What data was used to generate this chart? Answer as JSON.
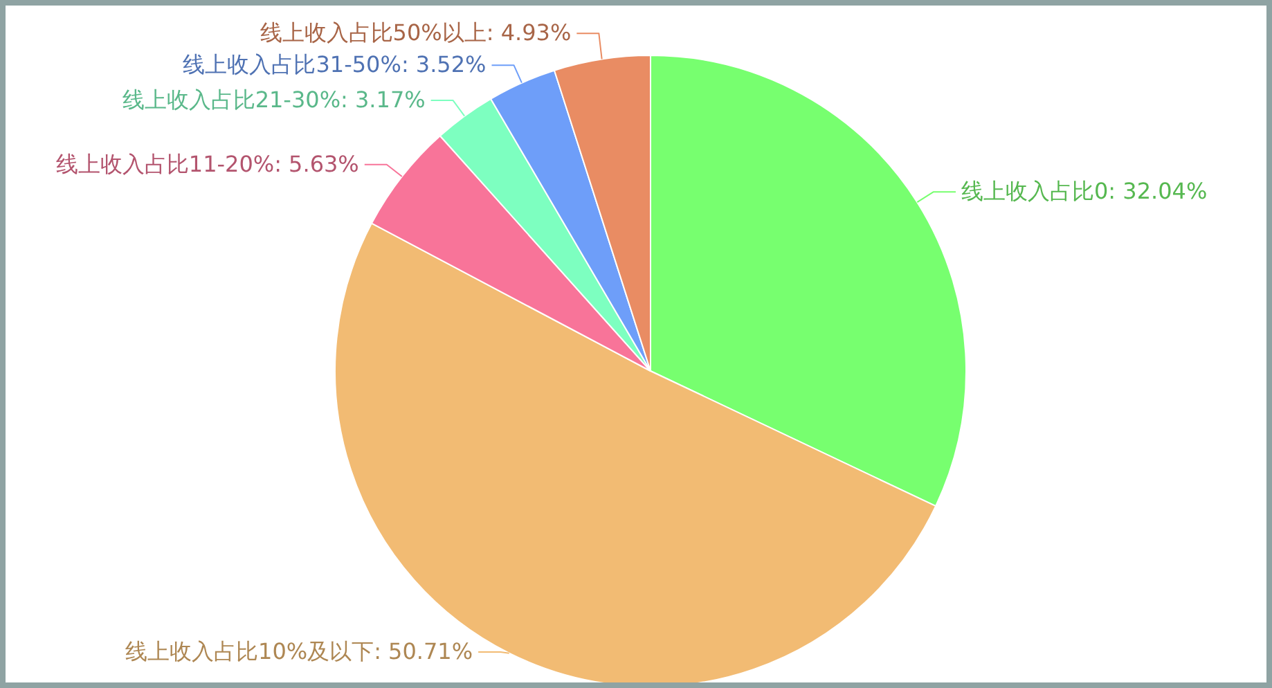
{
  "chart_data": {
    "type": "pie",
    "categories": [
      "线上收入占比0",
      "线上收入占比10%及以下",
      "线上收入占比11-20%",
      "线上收入占比21-30%",
      "线上收入占比31-50%",
      "线上收入占比50%以上"
    ],
    "values": [
      32.04,
      50.71,
      5.63,
      3.17,
      3.52,
      4.93
    ],
    "value_labels": [
      "32.04%",
      "50.71%",
      "5.63%",
      "3.17%",
      "3.52%",
      "4.93%"
    ],
    "colors": [
      "#77ff6f",
      "#f2bb73",
      "#f87499",
      "#7dffc0",
      "#6e9ef9",
      "#e98c63"
    ]
  }
}
